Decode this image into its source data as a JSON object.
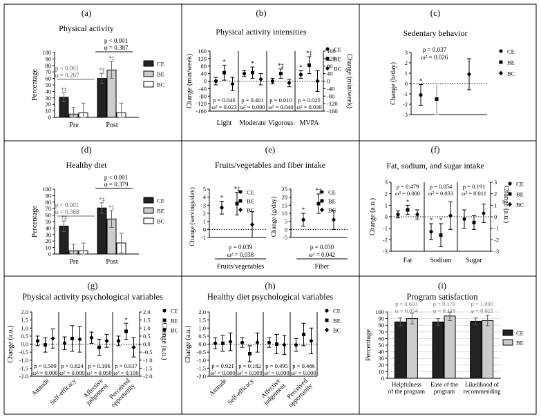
{
  "figure": {
    "panels": [
      "a",
      "b",
      "c",
      "d",
      "e",
      "f",
      "g",
      "h",
      "i"
    ]
  },
  "chart_data": [
    {
      "id": "a",
      "type": "bar",
      "panel_label": "(a)",
      "title": "Physical activity",
      "ylabel": "Percentage",
      "xlabel": "",
      "ylim": [
        0,
        100
      ],
      "yticks": [
        "0",
        "10",
        "20",
        "30",
        "40",
        "50",
        "60",
        "70",
        "80",
        "90",
        "100"
      ],
      "categories": [
        "Pre",
        "Post"
      ],
      "series": [
        {
          "name": "CE",
          "color": "#222222",
          "values": [
            31,
            60
          ],
          "errors": [
            7,
            8
          ],
          "markers": [
            "†‡",
            "*‡"
          ]
        },
        {
          "name": "BE",
          "color": "#cccccc",
          "values": [
            5,
            73
          ],
          "errors": [
            10,
            13
          ],
          "markers": [
            "",
            "*‡"
          ]
        },
        {
          "name": "BC",
          "color": "#ffffff",
          "values": [
            7,
            7
          ],
          "errors": [
            15,
            15
          ],
          "markers": [
            "",
            ""
          ]
        }
      ],
      "stats": [
        {
          "p": "p < 0.001",
          "phi": "φ = 0.267"
        },
        {
          "p": "p < 0.001",
          "phi": "φ = 0.387"
        }
      ],
      "legend": [
        "CE",
        "BE",
        "BC"
      ]
    },
    {
      "id": "b",
      "type": "scatter",
      "panel_label": "(b)",
      "title": "Physical activity intensities",
      "ylabel": "Change (min/week)",
      "ylabel_right": "Change (min/week)",
      "ylim": [
        -160,
        160
      ],
      "yticks": [
        "160",
        "120",
        "80",
        "40",
        "0",
        "-40",
        "-80",
        "-120",
        "-160"
      ],
      "categories": [
        "Light",
        "Moderate",
        "Vigorous",
        "MVPA"
      ],
      "series": [
        {
          "name": "CE",
          "marker": "circle",
          "values": [
            0,
            40,
            0,
            35
          ],
          "errors": [
            20,
            15,
            15,
            20
          ],
          "markers": [
            "",
            "",
            "",
            "*"
          ]
        },
        {
          "name": "BE",
          "marker": "square",
          "values": [
            45,
            45,
            40,
            85
          ],
          "errors": [
            40,
            30,
            25,
            45
          ],
          "markers": [
            "*",
            "*",
            "*‡",
            "*‡"
          ]
        },
        {
          "name": "BC",
          "marker": "diamond",
          "values": [
            -15,
            10,
            -10,
            0
          ],
          "errors": [
            35,
            30,
            20,
            55
          ],
          "markers": [
            "",
            "",
            "",
            ""
          ]
        }
      ],
      "stats": [
        {
          "p": "p = 0.046",
          "omega": "ω² = 0.023"
        },
        {
          "p": "p = 0.401",
          "omega": "ω² = 0.000"
        },
        {
          "p": "p = 0.010",
          "omega": "ω² = 0.040"
        },
        {
          "p": "p = 0.025",
          "omega": "ω² = 0.030"
        }
      ],
      "legend": [
        "CE",
        "BE",
        "BC"
      ]
    },
    {
      "id": "c",
      "type": "scatter",
      "panel_label": "(c)",
      "title": "Sedentary behavior",
      "ylabel": "Change (h/day)",
      "ylim": [
        -3,
        3
      ],
      "yticks": [
        "3",
        "2",
        "1",
        "0",
        "-1",
        "-2",
        "-3"
      ],
      "categories": [
        "CE",
        "BE",
        "BC"
      ],
      "series": [
        {
          "name": "CE",
          "marker": "circle",
          "values": [
            -1.1
          ],
          "errors": [
            1.0
          ],
          "markers": [
            "*"
          ]
        },
        {
          "name": "BE",
          "marker": "square",
          "values": [
            -1.5
          ],
          "errors": [
            1.5
          ],
          "markers": [
            ""
          ]
        },
        {
          "name": "BC",
          "marker": "diamond",
          "values": [
            0.9
          ],
          "errors": [
            1.5
          ],
          "markers": [
            ""
          ]
        }
      ],
      "stats": [
        {
          "p": "p = 0.037",
          "omega": "ω² = 0.026"
        }
      ],
      "legend": [
        "CE",
        "BE",
        "BC"
      ]
    },
    {
      "id": "d",
      "type": "bar",
      "panel_label": "(d)",
      "title": "Healthy diet",
      "ylabel": "Percentage",
      "ylim": [
        0,
        100
      ],
      "yticks": [
        "0",
        "10",
        "20",
        "30",
        "40",
        "50",
        "60",
        "70",
        "80",
        "90",
        "100"
      ],
      "categories": [
        "Pre",
        "Post"
      ],
      "series": [
        {
          "name": "CE",
          "color": "#222222",
          "values": [
            43,
            71
          ],
          "errors": [
            8,
            8
          ],
          "markers": [
            "†‡",
            "*‡"
          ]
        },
        {
          "name": "BE",
          "color": "#cccccc",
          "values": [
            5,
            54
          ],
          "errors": [
            10,
            13
          ],
          "markers": [
            "",
            "*‡"
          ]
        },
        {
          "name": "BC",
          "color": "#ffffff",
          "values": [
            5,
            17
          ],
          "errors": [
            12,
            15
          ],
          "markers": [
            "",
            ""
          ]
        }
      ],
      "stats": [
        {
          "p": "p < 0.001",
          "phi": "φ = 0.368"
        },
        {
          "p": "p < 0.001",
          "phi": "φ = 0.379"
        }
      ],
      "legend": [
        "CE",
        "BE",
        "BC"
      ]
    },
    {
      "id": "e",
      "type": "scatter",
      "panel_label": "(e)",
      "title": "Fruits/vegetables and fiber intake",
      "subplots": [
        {
          "ylabel": "Change (servings/day)",
          "xlabel": "Fruits/vegetables",
          "ylim": [
            -1,
            5
          ],
          "yticks": [
            "5",
            "4",
            "3",
            "2",
            "1",
            "0",
            "-1"
          ],
          "series": [
            {
              "name": "CE",
              "marker": "circle",
              "value": 2.7,
              "error": 0.8,
              "marker_label": "*"
            },
            {
              "name": "BE",
              "marker": "square",
              "value": 3.2,
              "error": 1.4,
              "marker_label": "*‡"
            },
            {
              "name": "BC",
              "marker": "diamond",
              "value": 0.6,
              "error": 1.6,
              "marker_label": ""
            }
          ],
          "p": "p = 0.039",
          "omega": "ω² = 0.038"
        },
        {
          "ylabel": "Change (g/day)",
          "xlabel": "Fiber",
          "ylim": [
            -5,
            25
          ],
          "yticks": [
            "25",
            "20",
            "15",
            "10",
            "5",
            "0",
            "-5"
          ],
          "series": [
            {
              "name": "CE",
              "marker": "circle",
              "value": 6,
              "error": 4,
              "marker_label": "*"
            },
            {
              "name": "BE",
              "marker": "square",
              "value": 16,
              "error": 6,
              "marker_label": "*‡"
            },
            {
              "name": "BC",
              "marker": "diamond",
              "value": 6,
              "error": 6,
              "marker_label": ""
            }
          ],
          "p": "p = 0.030",
          "omega": "ω² = 0.042"
        }
      ],
      "legend": [
        "CE",
        "BE",
        "BC"
      ]
    },
    {
      "id": "f",
      "type": "scatter",
      "panel_label": "(f)",
      "title": "Fat, sodium, and sugar intake",
      "ylabel": "Change (a.u.)",
      "ylabel_right": "Change (a.u.)",
      "ylim": [
        -3,
        3
      ],
      "yticks": [
        "3",
        "2",
        "1",
        "0",
        "-1",
        "-2",
        "-3"
      ],
      "categories": [
        "Fat",
        "Sodium",
        "Sugar"
      ],
      "series": [
        {
          "name": "CE",
          "marker": "circle",
          "values": [
            0.2,
            -1.3,
            -0.2
          ],
          "errors": [
            0.3,
            0.7,
            0.8
          ],
          "markers": [
            "",
            "*",
            ""
          ]
        },
        {
          "name": "BE",
          "marker": "square",
          "values": [
            0.6,
            -1.6,
            -0.5
          ],
          "errors": [
            0.4,
            1.0,
            0.6
          ],
          "markers": [
            "*",
            "*",
            ""
          ]
        },
        {
          "name": "BC",
          "marker": "diamond",
          "values": [
            0.2,
            0.1,
            0.3
          ],
          "errors": [
            0.4,
            1.2,
            0.8
          ],
          "markers": [
            "",
            "",
            ""
          ]
        }
      ],
      "stats": [
        {
          "p": "p = 0.479",
          "omega": "ω² = 0.000"
        },
        {
          "p": "p = 0.054",
          "omega": "ω² = 0.033"
        },
        {
          "p": "p = 0.191",
          "omega": "ω² = 0.011"
        }
      ],
      "legend": [
        "CE",
        "BE",
        "BC"
      ]
    },
    {
      "id": "g",
      "type": "scatter",
      "panel_label": "(g)",
      "title": "Physical activity psychological variables",
      "ylabel": "Change (a.u.)",
      "ylabel_right": "Change (a.u.)",
      "ylim": [
        -2,
        2
      ],
      "yticks": [
        "2.0",
        "1.5",
        "1.0",
        "0.5",
        "0.0",
        "-0.5",
        "-1.0",
        "-1.5",
        "-2.0"
      ],
      "categories": [
        "Attitude",
        "Self-efficacy",
        "Affective\njudgement",
        "Perceived\nopportunity"
      ],
      "series": [
        {
          "name": "CE",
          "marker": "circle",
          "values": [
            0.2,
            0.05,
            0.4,
            0.2
          ],
          "errors": [
            0.3,
            0.4,
            0.35,
            0.3
          ],
          "markers": [
            "",
            "",
            "",
            ""
          ]
        },
        {
          "name": "BE",
          "marker": "square",
          "values": [
            -0.05,
            0.35,
            -0.2,
            0.8
          ],
          "errors": [
            0.45,
            0.8,
            0.5,
            0.5
          ],
          "markers": [
            "",
            "",
            "",
            "*"
          ]
        },
        {
          "name": "BC",
          "marker": "diamond",
          "values": [
            0.35,
            0.3,
            0.2,
            -0.2
          ],
          "errors": [
            0.6,
            0.8,
            0.4,
            0.6
          ],
          "markers": [
            "",
            "",
            "",
            ""
          ]
        }
      ],
      "stats": [
        {
          "p": "p = 0.509",
          "omega": "ω² = 0.000"
        },
        {
          "p": "p = 0.824",
          "omega": "ω² = 0.000"
        },
        {
          "p": "p = 0.106",
          "omega": "ω² = 0.050"
        },
        {
          "p": "p = 0.037",
          "omega": "ω² = 0.100"
        }
      ],
      "legend": [
        "CE",
        "BE",
        "BC"
      ]
    },
    {
      "id": "h",
      "type": "scatter",
      "panel_label": "(h)",
      "title": "Healthy diet psychological variables",
      "ylabel": "Change (a.u.)",
      "ylim": [
        -2,
        2
      ],
      "yticks": [
        "2.0",
        "1.5",
        "1.0",
        "0.5",
        "0.0",
        "-0.5",
        "-1.0",
        "-1.5",
        "-2.0"
      ],
      "categories": [
        "Attitude",
        "Self-efficacy",
        "Affective\njudgement",
        "Perceived\nopportunity"
      ],
      "series": [
        {
          "name": "CE",
          "marker": "circle",
          "values": [
            0.05,
            0.1,
            0.1,
            -0.05
          ],
          "errors": [
            0.35,
            0.3,
            0.3,
            0.4
          ],
          "markers": [
            "",
            "",
            "",
            ""
          ]
        },
        {
          "name": "BE",
          "marker": "square",
          "values": [
            0.05,
            -0.6,
            0.0,
            0.6
          ],
          "errors": [
            0.5,
            0.5,
            0.6,
            0.7
          ],
          "markers": [
            "",
            "",
            "",
            ""
          ]
        },
        {
          "name": "BC",
          "marker": "diamond",
          "values": [
            0.15,
            0.1,
            -0.05,
            0.2
          ],
          "errors": [
            0.55,
            0.6,
            0.6,
            0.8
          ],
          "markers": [
            "",
            "",
            "",
            ""
          ]
        }
      ],
      "stats": [
        {
          "p": "p = 0.921",
          "omega": "ω² = 0.000"
        },
        {
          "p": "p = 0.182",
          "omega": "ω² = 0.009"
        },
        {
          "p": "p = 0.495",
          "omega": "ω² = 0.000"
        },
        {
          "p": "p = 0.486",
          "omega": "ω² = 0.000"
        }
      ],
      "legend": [
        "CE",
        "BE",
        "BC"
      ]
    },
    {
      "id": "i",
      "type": "bar",
      "panel_label": "(i)",
      "title": "Program satisfaction",
      "ylabel": "Percentage",
      "ylim": [
        0,
        100
      ],
      "yticks": [
        "0",
        "10",
        "20",
        "30",
        "40",
        "50",
        "60",
        "70",
        "80",
        "90",
        "100"
      ],
      "categories": [
        "Helpfulness\nof the program",
        "Ease of the\nprogram",
        "Likelihood of\nrecommending"
      ],
      "series": [
        {
          "name": "CE",
          "color": "#222222",
          "values": [
            85,
            85,
            86
          ],
          "errors": [
            6,
            5,
            5
          ]
        },
        {
          "name": "BE",
          "color": "#cccccc",
          "values": [
            90,
            94,
            87
          ],
          "errors": [
            8,
            7,
            8
          ]
        }
      ],
      "stats": [
        {
          "p": "p = 0.603",
          "phi": "φ = 0.054"
        },
        {
          "p": "p = 0.170",
          "phi": "φ = 0.118"
        },
        {
          "p": "p = 1.000",
          "phi": "φ = 0.021"
        }
      ],
      "legend": [
        "CE",
        "BE"
      ],
      "stats_color": "#777777"
    }
  ]
}
